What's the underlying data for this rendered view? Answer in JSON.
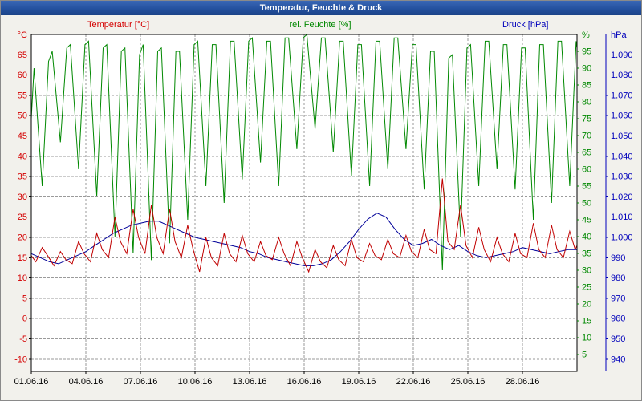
{
  "window": {
    "title": "Temperatur, Feuchte & Druck"
  },
  "chart_data": {
    "type": "line",
    "title": "Temperatur, Feuchte & Druck",
    "legend_position": "top",
    "grid": {
      "dashed": true,
      "color": "#9a9a9a"
    },
    "x_axis": {
      "range": [
        1,
        31
      ],
      "tick_days": [
        1,
        4,
        7,
        10,
        13,
        16,
        19,
        22,
        25,
        28
      ],
      "tick_labels": [
        "01.06.16",
        "04.06.16",
        "07.06.16",
        "10.06.16",
        "13.06.16",
        "16.06.16",
        "19.06.16",
        "22.06.16",
        "25.06.16",
        "28.06.16"
      ]
    },
    "axes": {
      "temperature": {
        "label": "Temperatur [°C]",
        "unit": "°C",
        "color": "#d40000",
        "side": "left",
        "range": [
          -13,
          70
        ],
        "ticks": [
          65,
          60,
          55,
          50,
          45,
          40,
          35,
          30,
          25,
          20,
          15,
          10,
          5,
          0,
          -5,
          -10
        ],
        "tick_labels": [
          "65",
          "60",
          "55",
          "50",
          "45",
          "40",
          "35",
          "30",
          "25",
          "20",
          "15",
          "10",
          "5",
          "0",
          "-5",
          "-10"
        ]
      },
      "humidity": {
        "label": "rel. Feuchte [%]",
        "unit": "%",
        "color": "#008800",
        "side": "right-inner",
        "range": [
          0,
          100
        ],
        "ticks": [
          95,
          90,
          85,
          80,
          75,
          70,
          65,
          60,
          55,
          50,
          45,
          40,
          35,
          30,
          25,
          20,
          15,
          10,
          5
        ],
        "tick_labels": [
          "95",
          "90",
          "85",
          "80",
          "75",
          "70",
          "65",
          "60",
          "55",
          "50",
          "45",
          "40",
          "35",
          "30",
          "25",
          "20",
          "15",
          "10",
          "5"
        ]
      },
      "pressure": {
        "label": "Druck [hPa]",
        "unit": "hPa",
        "color": "#0000bb",
        "side": "right-outer",
        "range": [
          934,
          1100
        ],
        "ticks": [
          1090,
          1080,
          1070,
          1060,
          1050,
          1040,
          1030,
          1020,
          1010,
          1000,
          990,
          980,
          970,
          960,
          950,
          940
        ],
        "tick_labels": [
          "1.090",
          "1.080",
          "1.070",
          "1.060",
          "1.050",
          "1.040",
          "1.030",
          "1.020",
          "1.010",
          "1.000",
          "990",
          "980",
          "970",
          "960",
          "950",
          "940"
        ]
      }
    },
    "series": [
      {
        "name": "Temperatur",
        "axis": "temperature",
        "color": "#c00000",
        "z": 3,
        "points": [
          [
            1,
            15.5
          ],
          [
            1.25,
            14
          ],
          [
            1.6,
            17.5
          ],
          [
            1.9,
            15.5
          ],
          [
            2.25,
            13
          ],
          [
            2.6,
            16.5
          ],
          [
            2.9,
            14.5
          ],
          [
            3.25,
            13.5
          ],
          [
            3.6,
            19
          ],
          [
            3.9,
            16
          ],
          [
            4.25,
            14
          ],
          [
            4.6,
            21
          ],
          [
            4.9,
            17
          ],
          [
            5.25,
            15
          ],
          [
            5.6,
            25
          ],
          [
            5.9,
            19
          ],
          [
            6.25,
            16
          ],
          [
            6.6,
            27
          ],
          [
            6.9,
            20
          ],
          [
            7.25,
            16
          ],
          [
            7.6,
            28
          ],
          [
            7.9,
            20
          ],
          [
            8.25,
            16
          ],
          [
            8.6,
            27
          ],
          [
            8.9,
            19
          ],
          [
            9.25,
            15
          ],
          [
            9.6,
            23
          ],
          [
            9.9,
            17
          ],
          [
            10.25,
            11.5
          ],
          [
            10.6,
            20
          ],
          [
            10.9,
            15
          ],
          [
            11.25,
            13
          ],
          [
            11.6,
            21
          ],
          [
            11.9,
            16
          ],
          [
            12.25,
            14
          ],
          [
            12.6,
            20.5
          ],
          [
            12.9,
            16
          ],
          [
            13.25,
            14
          ],
          [
            13.6,
            19
          ],
          [
            13.9,
            15.5
          ],
          [
            14.25,
            14.5
          ],
          [
            14.6,
            20
          ],
          [
            14.9,
            16
          ],
          [
            15.25,
            13
          ],
          [
            15.6,
            19
          ],
          [
            15.9,
            15
          ],
          [
            16.25,
            11.5
          ],
          [
            16.6,
            17
          ],
          [
            16.9,
            14
          ],
          [
            17.25,
            12.5
          ],
          [
            17.6,
            18
          ],
          [
            17.9,
            14.5
          ],
          [
            18.25,
            13
          ],
          [
            18.6,
            19.5
          ],
          [
            18.9,
            15
          ],
          [
            19.25,
            14
          ],
          [
            19.6,
            18.5
          ],
          [
            19.9,
            15.5
          ],
          [
            20.25,
            14.5
          ],
          [
            20.6,
            19.5
          ],
          [
            20.9,
            16
          ],
          [
            21.25,
            15
          ],
          [
            21.6,
            20.5
          ],
          [
            21.9,
            16.5
          ],
          [
            22.25,
            15
          ],
          [
            22.6,
            22
          ],
          [
            22.9,
            17
          ],
          [
            23.25,
            16
          ],
          [
            23.6,
            34.5
          ],
          [
            23.9,
            19
          ],
          [
            24.25,
            17
          ],
          [
            24.6,
            28
          ],
          [
            24.9,
            18
          ],
          [
            25.25,
            15
          ],
          [
            25.6,
            22.5
          ],
          [
            25.9,
            17
          ],
          [
            26.25,
            14
          ],
          [
            26.6,
            20
          ],
          [
            26.9,
            16
          ],
          [
            27.25,
            14
          ],
          [
            27.6,
            21
          ],
          [
            27.9,
            16
          ],
          [
            28.25,
            15
          ],
          [
            28.6,
            23.5
          ],
          [
            28.9,
            17
          ],
          [
            29.25,
            15
          ],
          [
            29.6,
            23
          ],
          [
            29.9,
            17
          ],
          [
            30.25,
            15
          ],
          [
            30.6,
            21.5
          ],
          [
            30.9,
            17
          ],
          [
            31,
            18
          ]
        ]
      },
      {
        "name": "rel. Feuchte",
        "axis": "humidity",
        "color": "#008800",
        "z": 1,
        "points": [
          [
            1,
            75
          ],
          [
            1.15,
            90
          ],
          [
            1.6,
            55
          ],
          [
            1.95,
            92
          ],
          [
            2.15,
            95
          ],
          [
            2.6,
            68
          ],
          [
            2.95,
            96
          ],
          [
            3.15,
            97
          ],
          [
            3.6,
            60
          ],
          [
            3.95,
            97
          ],
          [
            4.15,
            98
          ],
          [
            4.6,
            52
          ],
          [
            4.95,
            96
          ],
          [
            5.15,
            97
          ],
          [
            5.6,
            40
          ],
          [
            5.95,
            95
          ],
          [
            6.15,
            96
          ],
          [
            6.6,
            35
          ],
          [
            6.95,
            94
          ],
          [
            7.15,
            97
          ],
          [
            7.6,
            33
          ],
          [
            7.95,
            95
          ],
          [
            8.15,
            96
          ],
          [
            8.6,
            38
          ],
          [
            8.95,
            95
          ],
          [
            9.15,
            95
          ],
          [
            9.6,
            45
          ],
          [
            9.95,
            97
          ],
          [
            10.15,
            98
          ],
          [
            10.6,
            55
          ],
          [
            10.95,
            97
          ],
          [
            11.15,
            97
          ],
          [
            11.6,
            50
          ],
          [
            11.95,
            98
          ],
          [
            12.15,
            98
          ],
          [
            12.6,
            57
          ],
          [
            12.95,
            98
          ],
          [
            13.15,
            99
          ],
          [
            13.6,
            62
          ],
          [
            13.95,
            98
          ],
          [
            14.15,
            98
          ],
          [
            14.6,
            55
          ],
          [
            14.95,
            99
          ],
          [
            15.15,
            99
          ],
          [
            15.6,
            66
          ],
          [
            15.95,
            99
          ],
          [
            16.15,
            100
          ],
          [
            16.6,
            72
          ],
          [
            16.95,
            99
          ],
          [
            17.15,
            99
          ],
          [
            17.6,
            65
          ],
          [
            17.95,
            98
          ],
          [
            18.15,
            98
          ],
          [
            18.6,
            58
          ],
          [
            18.95,
            97
          ],
          [
            19.15,
            97
          ],
          [
            19.6,
            55
          ],
          [
            19.95,
            98
          ],
          [
            20.15,
            98
          ],
          [
            20.6,
            60
          ],
          [
            20.95,
            99
          ],
          [
            21.15,
            99
          ],
          [
            21.6,
            66
          ],
          [
            21.95,
            97
          ],
          [
            22.15,
            97
          ],
          [
            22.6,
            54
          ],
          [
            22.95,
            95
          ],
          [
            23.15,
            95
          ],
          [
            23.6,
            30
          ],
          [
            23.95,
            93
          ],
          [
            24.15,
            94
          ],
          [
            24.6,
            40
          ],
          [
            24.95,
            96
          ],
          [
            25.15,
            97
          ],
          [
            25.6,
            55
          ],
          [
            25.95,
            98
          ],
          [
            26.15,
            98
          ],
          [
            26.6,
            60
          ],
          [
            26.95,
            97
          ],
          [
            27.15,
            97
          ],
          [
            27.6,
            54
          ],
          [
            27.95,
            96
          ],
          [
            28.15,
            96
          ],
          [
            28.6,
            45
          ],
          [
            28.95,
            97
          ],
          [
            29.15,
            97
          ],
          [
            29.6,
            50
          ],
          [
            29.95,
            98
          ],
          [
            30.15,
            98
          ],
          [
            30.6,
            55
          ],
          [
            30.95,
            98
          ],
          [
            31,
            96
          ]
        ]
      },
      {
        "name": "Druck",
        "axis": "pressure",
        "color": "#000099",
        "z": 2,
        "points": [
          [
            1,
            992
          ],
          [
            1.5,
            990
          ],
          [
            2,
            988
          ],
          [
            2.5,
            987
          ],
          [
            3,
            989
          ],
          [
            3.5,
            991
          ],
          [
            4,
            993
          ],
          [
            4.5,
            996
          ],
          [
            5,
            999
          ],
          [
            5.5,
            1002
          ],
          [
            6,
            1004
          ],
          [
            6.5,
            1006
          ],
          [
            7,
            1007
          ],
          [
            7.5,
            1008
          ],
          [
            8,
            1008
          ],
          [
            8.5,
            1006
          ],
          [
            9,
            1004
          ],
          [
            9.5,
            1002
          ],
          [
            10,
            1000
          ],
          [
            10.5,
            999
          ],
          [
            11,
            998
          ],
          [
            11.5,
            997
          ],
          [
            12,
            996
          ],
          [
            12.5,
            995
          ],
          [
            13,
            993
          ],
          [
            13.5,
            992
          ],
          [
            14,
            990
          ],
          [
            14.5,
            989
          ],
          [
            15,
            988
          ],
          [
            15.5,
            987
          ],
          [
            16,
            986
          ],
          [
            16.5,
            986
          ],
          [
            17,
            987
          ],
          [
            17.5,
            989
          ],
          [
            18,
            993
          ],
          [
            18.5,
            998
          ],
          [
            19,
            1004
          ],
          [
            19.5,
            1009
          ],
          [
            20,
            1012
          ],
          [
            20.5,
            1010
          ],
          [
            21,
            1004
          ],
          [
            21.5,
            999
          ],
          [
            22,
            996
          ],
          [
            22.5,
            997
          ],
          [
            23,
            999
          ],
          [
            23.5,
            996
          ],
          [
            24,
            994
          ],
          [
            24.5,
            996
          ],
          [
            25,
            993
          ],
          [
            25.5,
            991
          ],
          [
            26,
            990
          ],
          [
            26.5,
            991
          ],
          [
            27,
            992
          ],
          [
            27.5,
            993
          ],
          [
            28,
            995
          ],
          [
            28.5,
            994
          ],
          [
            29,
            993
          ],
          [
            29.5,
            992
          ],
          [
            30,
            993
          ],
          [
            30.5,
            994
          ],
          [
            31,
            994
          ]
        ]
      }
    ]
  }
}
